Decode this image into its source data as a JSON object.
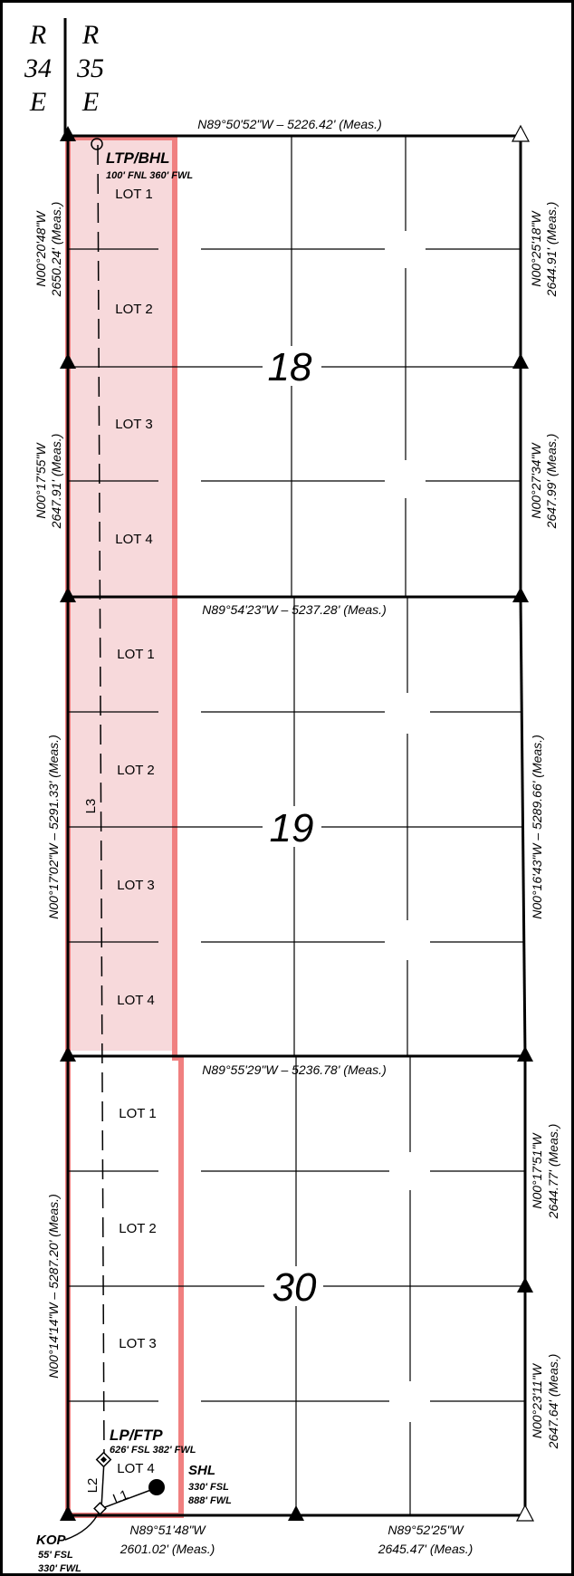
{
  "range": {
    "west": {
      "r": "R",
      "num": "34",
      "dir": "E"
    },
    "east": {
      "r": "R",
      "num": "35",
      "dir": "E"
    }
  },
  "sections": [
    {
      "number": "18",
      "lots": [
        "LOT 1",
        "LOT 2",
        "LOT 3",
        "LOT 4"
      ]
    },
    {
      "number": "19",
      "lots": [
        "LOT 1",
        "LOT 2",
        "LOT 3",
        "LOT 4"
      ]
    },
    {
      "number": "30",
      "lots": [
        "LOT 1",
        "LOT 2",
        "LOT 3",
        "LOT 4"
      ]
    }
  ],
  "bearings": {
    "top_18": "N89°50'52\"W – 5226.42' (Meas.)",
    "top_19": "N89°54'23\"W – 5237.28' (Meas.)",
    "top_30": "N89°55'29\"W – 5236.78' (Meas.)",
    "bottom_west_bearing": "N89°51'48\"W",
    "bottom_west_dist": "2601.02' (Meas.)",
    "bottom_east_bearing": "N89°52'25\"W",
    "bottom_east_dist": "2645.47' (Meas.)",
    "west_18_n_bearing": "N00°20'48\"W",
    "west_18_n_dist": "2650.24' (Meas.)",
    "west_18_s_bearing": "N00°17'55\"W",
    "west_18_s_dist": "2647.91' (Meas.)",
    "east_18_n_bearing": "N00°25'18\"W",
    "east_18_n_dist": "2644.91' (Meas.)",
    "east_18_s_bearing": "N00°27'34\"W",
    "east_18_s_dist": "2647.99' (Meas.)",
    "west_19": "N00°17'02\"W – 5291.33' (Meas.)",
    "east_19": "N00°16'43\"W – 5289.66' (Meas.)",
    "west_30": "N00°14'14\"W – 5287.20' (Meas.)",
    "east_30_n_bearing": "N00°17'51\"W",
    "east_30_n_dist": "2644.77' (Meas.)",
    "east_30_s_bearing": "N00°23'11\"W",
    "east_30_s_dist": "2647.64' (Meas.)"
  },
  "points": {
    "ltp_bhl": {
      "name": "LTP/BHL",
      "detail": "100' FNL 360' FWL"
    },
    "lp_ftp": {
      "name": "LP/FTP",
      "detail": "626' FSL 382' FWL"
    },
    "shl": {
      "name": "SHL",
      "detail1": "330' FSL",
      "detail2": "888' FWL"
    },
    "kop": {
      "name": "KOP",
      "detail1": "55' FSL",
      "detail2": "330' FWL"
    }
  },
  "line_labels": {
    "l1": "L1",
    "l2": "L2",
    "l3": "L3"
  },
  "colors": {
    "lease_fill": "#f7d9db",
    "lease_outline": "#f08080",
    "linework": "#000000"
  }
}
